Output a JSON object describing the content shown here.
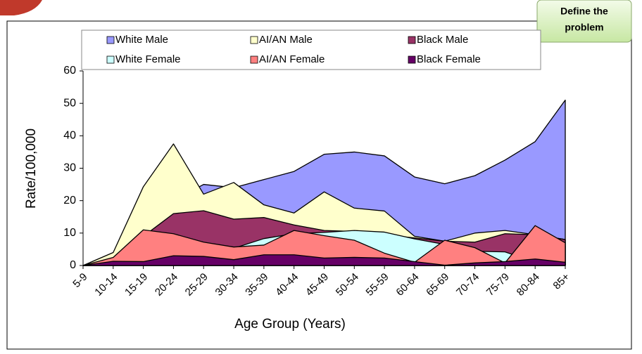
{
  "badge": "Define the problem",
  "chart_data": {
    "type": "area",
    "x_label": "Age Group (Years)",
    "y_label": "Rate/100,000",
    "categories": [
      "5-9",
      "10-14",
      "15-19",
      "20-24",
      "25-29",
      "30-34",
      "35-39",
      "40-44",
      "45-49",
      "50-54",
      "55-59",
      "60-64",
      "65-69",
      "70-74",
      "75-79",
      "80-84",
      "85+"
    ],
    "ylim": [
      0,
      60
    ],
    "yticks": [
      0,
      10,
      20,
      30,
      40,
      50,
      60
    ],
    "series": [
      {
        "name": "White Male",
        "color": "#9999ff",
        "values": [
          0,
          3,
          15,
          20,
          25,
          24,
          26.5,
          29,
          34.3,
          35,
          33.8,
          27.3,
          25.2,
          27.7,
          32.5,
          38.2,
          51
        ]
      },
      {
        "name": "AI/AN Male",
        "color": "#ffffcc",
        "values": [
          0,
          4,
          24.3,
          37.5,
          22,
          25.6,
          18.7,
          16.2,
          22.7,
          17.7,
          16.8,
          9,
          7.5,
          10,
          10.8,
          9.5,
          8
        ]
      },
      {
        "name": "Black Male",
        "color": "#993366",
        "values": [
          0,
          1,
          9,
          16,
          16.9,
          14.3,
          14.8,
          12.5,
          10.8,
          10.5,
          9.5,
          8.5,
          7.5,
          7.2,
          9.8,
          9.5,
          8
        ]
      },
      {
        "name": "White Female",
        "color": "#ccffff",
        "values": [
          0,
          1,
          4,
          5,
          6,
          5.3,
          8.3,
          9.8,
          10.2,
          10.8,
          10.3,
          8.2,
          6.5,
          4.4,
          4.2,
          1,
          6
        ]
      },
      {
        "name": "AI/AN Female",
        "color": "#ff8080",
        "values": [
          0,
          2.5,
          11,
          9.8,
          7.2,
          5.7,
          6.3,
          10.8,
          9.2,
          7.8,
          3.8,
          1,
          7.8,
          5.5,
          0.8,
          12.3,
          7
        ]
      },
      {
        "name": "Black Female",
        "color": "#660066",
        "values": [
          0,
          1.3,
          1.2,
          3,
          2.8,
          1.8,
          3.3,
          3.3,
          2.3,
          2.5,
          2.3,
          1.2,
          0.1,
          0.8,
          1.2,
          2,
          1
        ]
      }
    ]
  }
}
